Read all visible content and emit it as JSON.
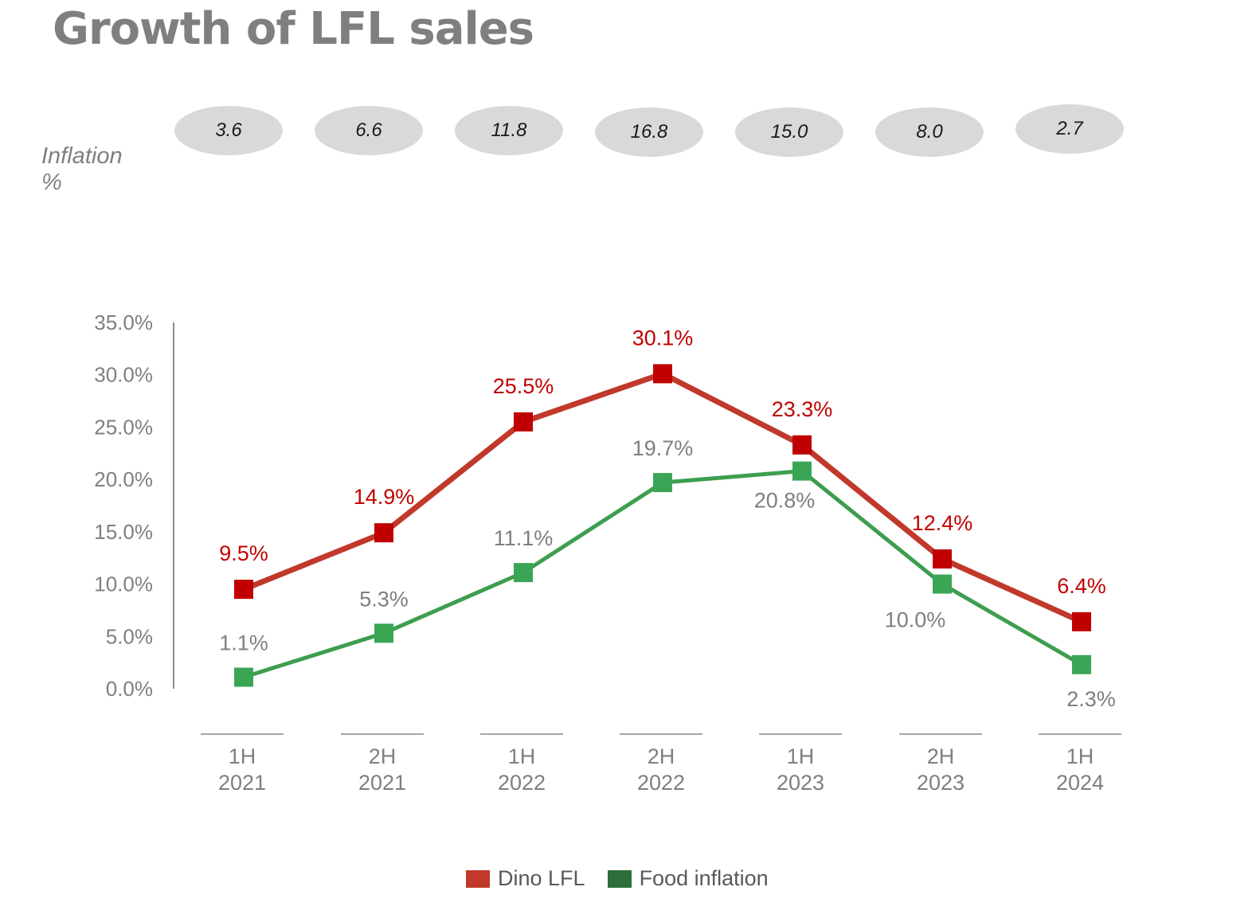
{
  "title": "Growth of LFL sales",
  "inflation_label": {
    "line1": "Inflation",
    "line2": "%"
  },
  "inflation_values": [
    "3.6",
    "6.6",
    "11.8",
    "16.8",
    "15.0",
    "8.0",
    "2.7"
  ],
  "colors": {
    "dino": "#c0392b",
    "dino_marker": "#c00000",
    "food": "#3e9e4f",
    "food_marker": "#3aa655",
    "legend_food": "#2e7d3e",
    "axis": "#8c8c8c",
    "text": "#7f7f7f"
  },
  "legend": [
    {
      "label": "Dino LFL",
      "color": "#c0392b"
    },
    {
      "label": "Food inflation",
      "color": "#2e6e3a"
    }
  ],
  "chart_data": {
    "type": "line",
    "categories": [
      [
        "1H",
        "2021"
      ],
      [
        "2H",
        "2021"
      ],
      [
        "1H",
        "2022"
      ],
      [
        "2H",
        "2022"
      ],
      [
        "1H",
        "2023"
      ],
      [
        "2H",
        "2023"
      ],
      [
        "1H",
        "2024"
      ]
    ],
    "series": [
      {
        "name": "Dino LFL",
        "values": [
          9.5,
          14.9,
          25.5,
          30.1,
          23.3,
          12.4,
          6.4
        ],
        "labels": [
          "9.5%",
          "14.9%",
          "25.5%",
          "30.1%",
          "23.3%",
          "12.4%",
          "6.4%"
        ]
      },
      {
        "name": "Food inflation",
        "values": [
          1.1,
          5.3,
          11.1,
          19.7,
          20.8,
          10.0,
          2.3
        ],
        "labels": [
          "1.1%",
          "5.3%",
          "11.1%",
          "19.7%",
          "20.8%",
          "10.0%",
          "2.3%"
        ]
      }
    ],
    "ylim": [
      0,
      35
    ],
    "yticks": [
      "0.0%",
      "5.0%",
      "10.0%",
      "15.0%",
      "20.0%",
      "25.0%",
      "30.0%",
      "35.0%"
    ],
    "grid": false,
    "legend_position": "bottom"
  }
}
